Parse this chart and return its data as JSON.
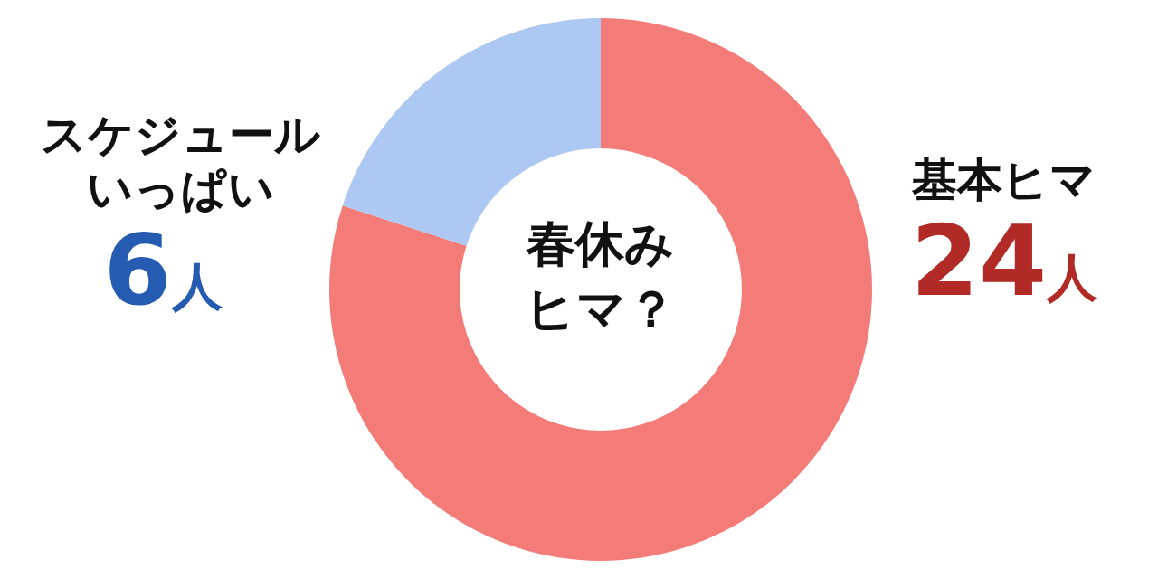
{
  "chart_data": {
    "type": "donut",
    "title": "春休みヒマ？",
    "categories": [
      "基本ヒマ",
      "スケジュールいっぱい"
    ],
    "values": [
      24,
      6
    ],
    "value_labels": [
      "24人",
      "6人"
    ],
    "colors": [
      "#f47c78",
      "#adc8f2"
    ],
    "legend": false
  }
}
